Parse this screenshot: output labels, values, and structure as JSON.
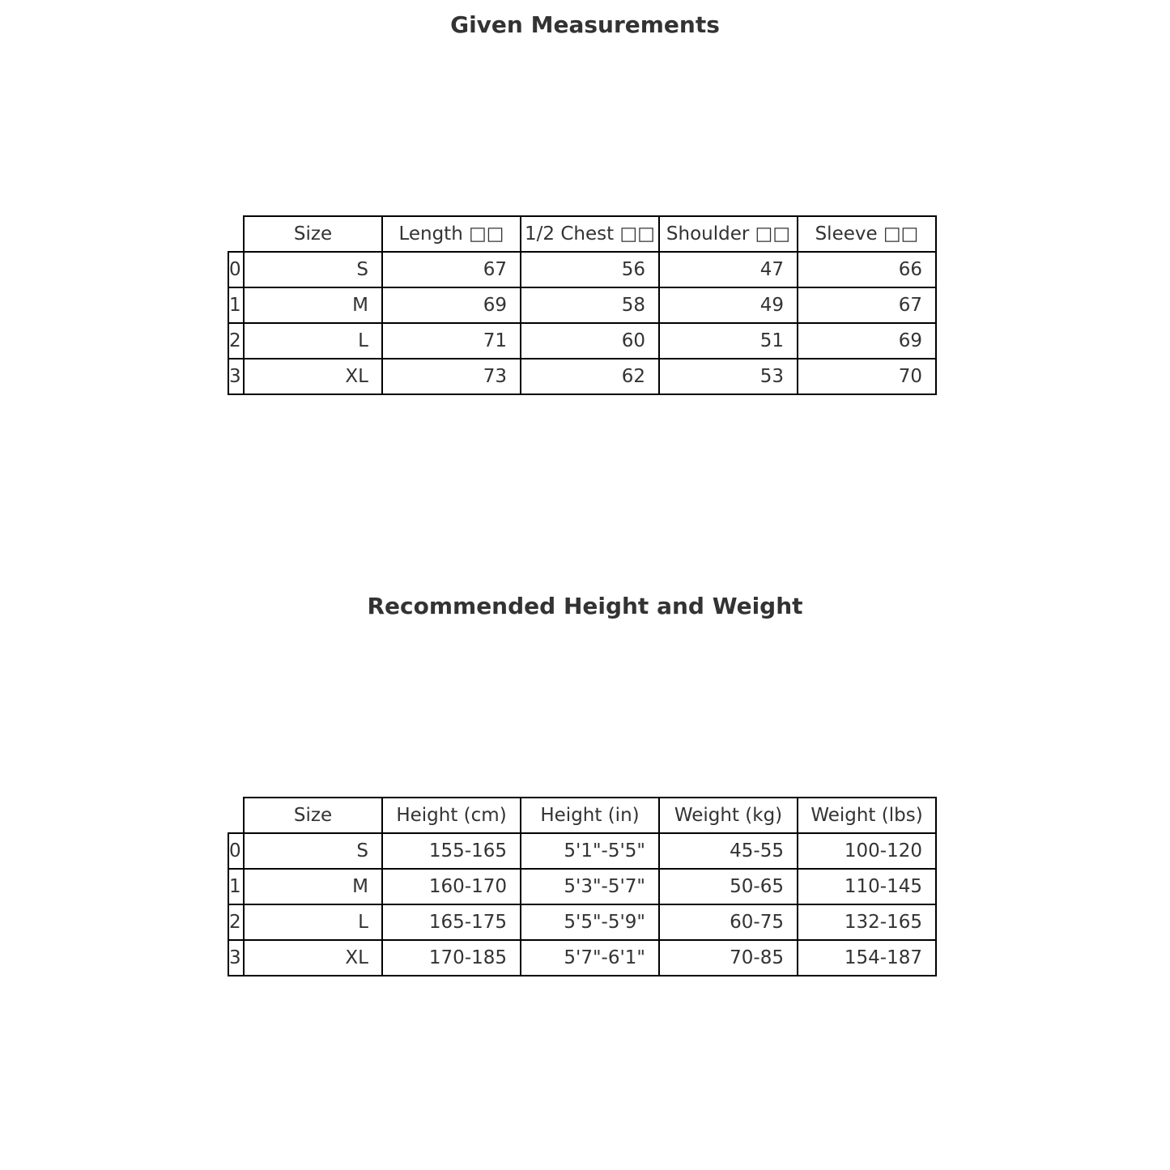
{
  "table1": {
    "title": "Given Measurements",
    "columns": [
      "Size",
      "Length □□",
      "1/2 Chest □□",
      "Shoulder □□",
      "Sleeve □□"
    ],
    "rows": [
      {
        "index": "0",
        "cells": [
          "S",
          "67",
          "56",
          "47",
          "66"
        ]
      },
      {
        "index": "1",
        "cells": [
          "M",
          "69",
          "58",
          "49",
          "67"
        ]
      },
      {
        "index": "2",
        "cells": [
          "L",
          "71",
          "60",
          "51",
          "69"
        ]
      },
      {
        "index": "3",
        "cells": [
          "XL",
          "73",
          "62",
          "53",
          "70"
        ]
      }
    ]
  },
  "table2": {
    "title": "Recommended Height and Weight",
    "columns": [
      "Size",
      "Height (cm)",
      "Height (in)",
      "Weight (kg)",
      "Weight (lbs)"
    ],
    "rows": [
      {
        "index": "0",
        "cells": [
          "S",
          "155-165",
          "5'1\"-5'5\"",
          "45-55",
          "100-120"
        ]
      },
      {
        "index": "1",
        "cells": [
          "M",
          "160-170",
          "5'3\"-5'7\"",
          "50-65",
          "110-145"
        ]
      },
      {
        "index": "2",
        "cells": [
          "L",
          "165-175",
          "5'5\"-5'9\"",
          "60-75",
          "132-165"
        ]
      },
      {
        "index": "3",
        "cells": [
          "XL",
          "170-185",
          "5'7\"-6'1\"",
          "70-85",
          "154-187"
        ]
      }
    ]
  }
}
